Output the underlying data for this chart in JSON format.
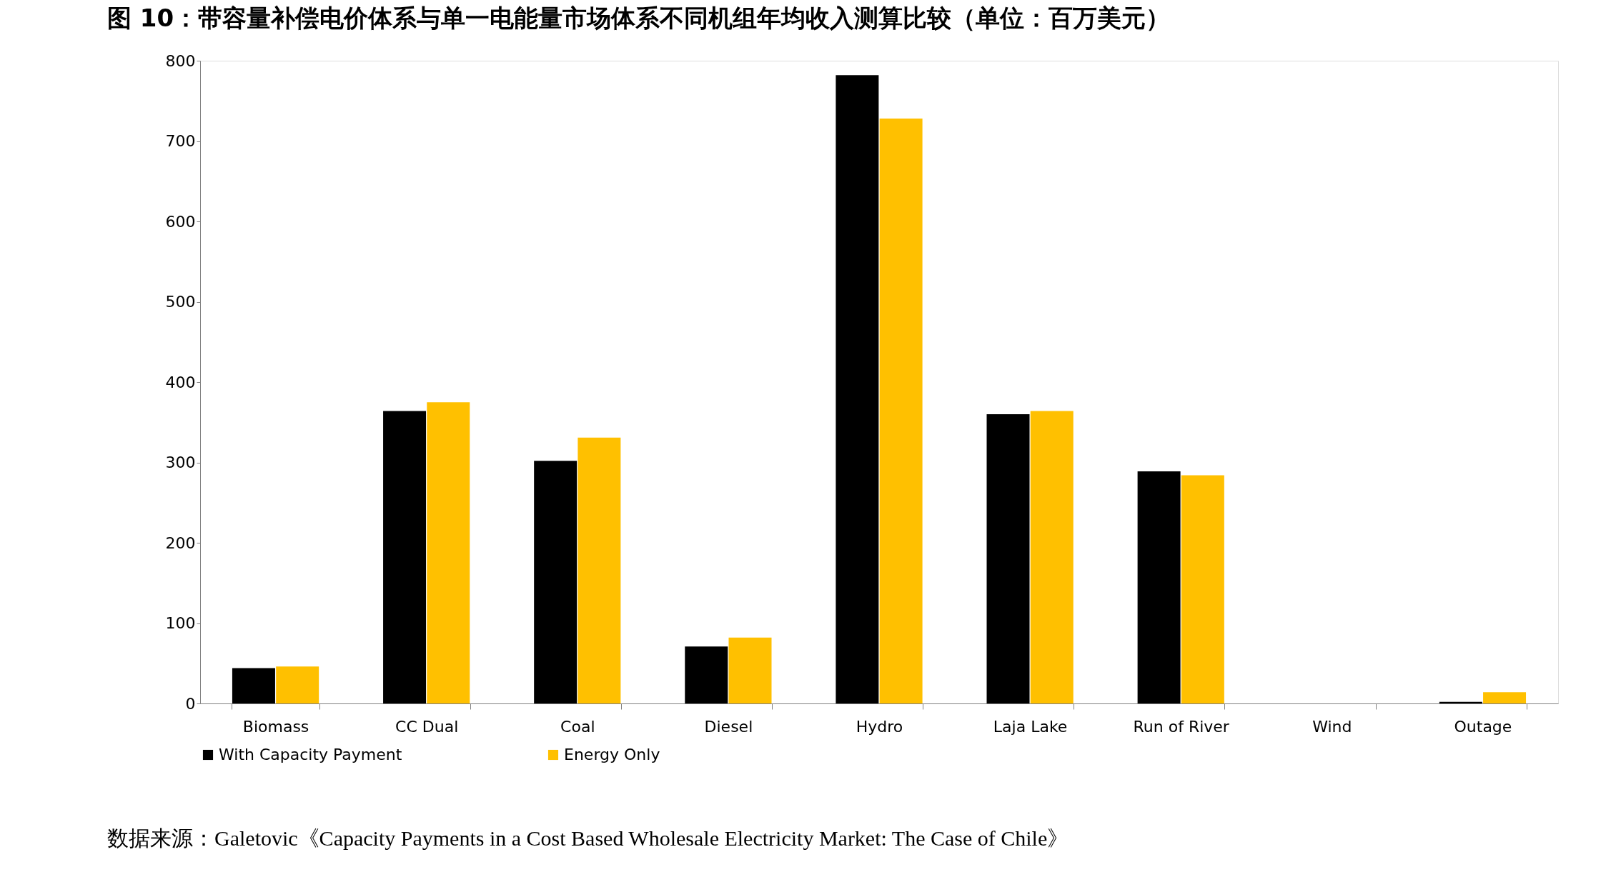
{
  "chart_data": {
    "type": "bar",
    "title": "图 10：带容量补偿电价体系与单一电能量市场体系不同机组年均收入测算比较（单位：百万美元）",
    "categories": [
      "Biomass",
      "CC Dual",
      "Coal",
      "Diesel",
      "Hydro",
      "Laja Lake",
      "Run of River",
      "Wind",
      "Outage"
    ],
    "series": [
      {
        "name": "With Capacity Payment",
        "color": "#000000",
        "values": [
          44,
          364,
          302,
          71,
          782,
          360,
          289,
          0,
          2
        ]
      },
      {
        "name": "Energy Only",
        "color": "#ffc000",
        "values": [
          46,
          375,
          331,
          82,
          728,
          364,
          284,
          0,
          14
        ]
      }
    ],
    "ylim": [
      0,
      800
    ],
    "yticks": [
      0,
      100,
      200,
      300,
      400,
      500,
      600,
      700,
      800
    ],
    "grid": false,
    "legend": "bottom",
    "annotations": [
      "数据来源：Galetovic《Capacity Payments in a Cost Based Wholesale Electricity Market: The Case of Chile》"
    ]
  }
}
